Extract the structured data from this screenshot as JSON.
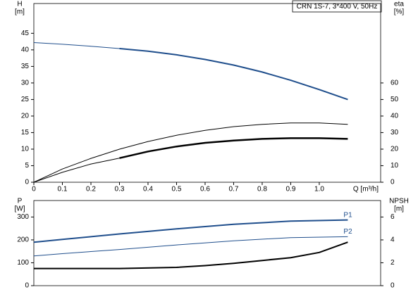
{
  "chart_data": [
    {
      "type": "line",
      "title": "CRN 1S-7, 3*400 V, 50Hz",
      "ylabel": "H",
      "yunit": "[m]",
      "y2label": "eta",
      "y2unit": "[%]",
      "xlabel": "Q [m³/h]",
      "xlim": [
        0,
        1.215
      ],
      "xticks": [
        0,
        0.1,
        0.2,
        0.3,
        0.4,
        0.5,
        0.6,
        0.7,
        0.8,
        0.9,
        {
          "value": 1,
          "label": "1.0"
        }
      ],
      "ylim": [
        0,
        54
      ],
      "yticks": [
        0,
        5,
        10,
        15,
        20,
        25,
        30,
        35,
        40,
        45
      ],
      "y2lim": [
        0,
        108
      ],
      "y2ticks": [
        0,
        10,
        20,
        30,
        40,
        50,
        60
      ],
      "series": [
        {
          "color": "#1f4e8c",
          "width": 1,
          "x": [
            0,
            0.1,
            0.2,
            0.3
          ],
          "values": [
            42.2,
            41.7,
            41.1,
            40.4
          ]
        },
        {
          "color": "#1f4e8c",
          "width": 2,
          "x": [
            0.3,
            0.4,
            0.5,
            0.6,
            0.7,
            0.8,
            0.9,
            1.0,
            1.1
          ],
          "values": [
            40.4,
            39.6,
            38.5,
            37.1,
            35.4,
            33.3,
            30.8,
            28,
            25
          ]
        },
        {
          "color": "#000000",
          "width": 1,
          "axis": "y2",
          "x": [
            0,
            0.1,
            0.2,
            0.3,
            0.4,
            0.5,
            0.6,
            0.7,
            0.8,
            0.9,
            1.0,
            1.1
          ],
          "values": [
            0,
            8,
            14.4,
            20,
            24.6,
            28.4,
            31.4,
            33.6,
            35,
            35.8,
            35.8,
            35
          ]
        },
        {
          "color": "#000000",
          "width": 1,
          "axis": "y2",
          "x": [
            0,
            0.1,
            0.2,
            0.3
          ],
          "values": [
            0,
            6,
            11,
            14.6
          ]
        },
        {
          "color": "#000000",
          "width": 2.5,
          "axis": "y2",
          "x": [
            0.3,
            0.4,
            0.5,
            0.6,
            0.7,
            0.8,
            0.9,
            1.0,
            1.1
          ],
          "values": [
            14.6,
            18.6,
            21.6,
            23.8,
            25.2,
            26.2,
            26.6,
            26.6,
            26.2
          ]
        }
      ]
    },
    {
      "type": "line",
      "ylabel": "P",
      "yunit": "[W]",
      "y2label": "NPSH",
      "y2unit": "[m]",
      "xlim": [
        0,
        1.215
      ],
      "ylim": [
        0,
        372
      ],
      "yticks": [
        0,
        100,
        200,
        300
      ],
      "y2lim": [
        0,
        7.44
      ],
      "y2ticks": [
        0,
        2,
        4,
        6
      ],
      "series": [
        {
          "name": "P1",
          "color": "#1f4e8c",
          "width": 2,
          "x": [
            0,
            0.1,
            0.2,
            0.3,
            0.5,
            0.7,
            0.9,
            1.1
          ],
          "values": [
            190,
            202,
            214,
            226,
            248,
            268,
            282,
            287
          ]
        },
        {
          "name": "P2",
          "color": "#1f4e8c",
          "width": 1,
          "x": [
            0,
            0.1,
            0.2,
            0.3,
            0.5,
            0.7,
            0.9,
            1.1
          ],
          "values": [
            130,
            140,
            149,
            158,
            178,
            196,
            210,
            214
          ]
        },
        {
          "color": "#000000",
          "width": 2,
          "axis": "y2",
          "x": [
            0,
            0.3,
            0.5,
            0.6,
            0.7,
            0.8,
            0.9,
            1.0,
            1.1
          ],
          "values": [
            1.5,
            1.5,
            1.6,
            1.75,
            1.95,
            2.2,
            2.45,
            2.9,
            3.8
          ]
        }
      ]
    }
  ]
}
